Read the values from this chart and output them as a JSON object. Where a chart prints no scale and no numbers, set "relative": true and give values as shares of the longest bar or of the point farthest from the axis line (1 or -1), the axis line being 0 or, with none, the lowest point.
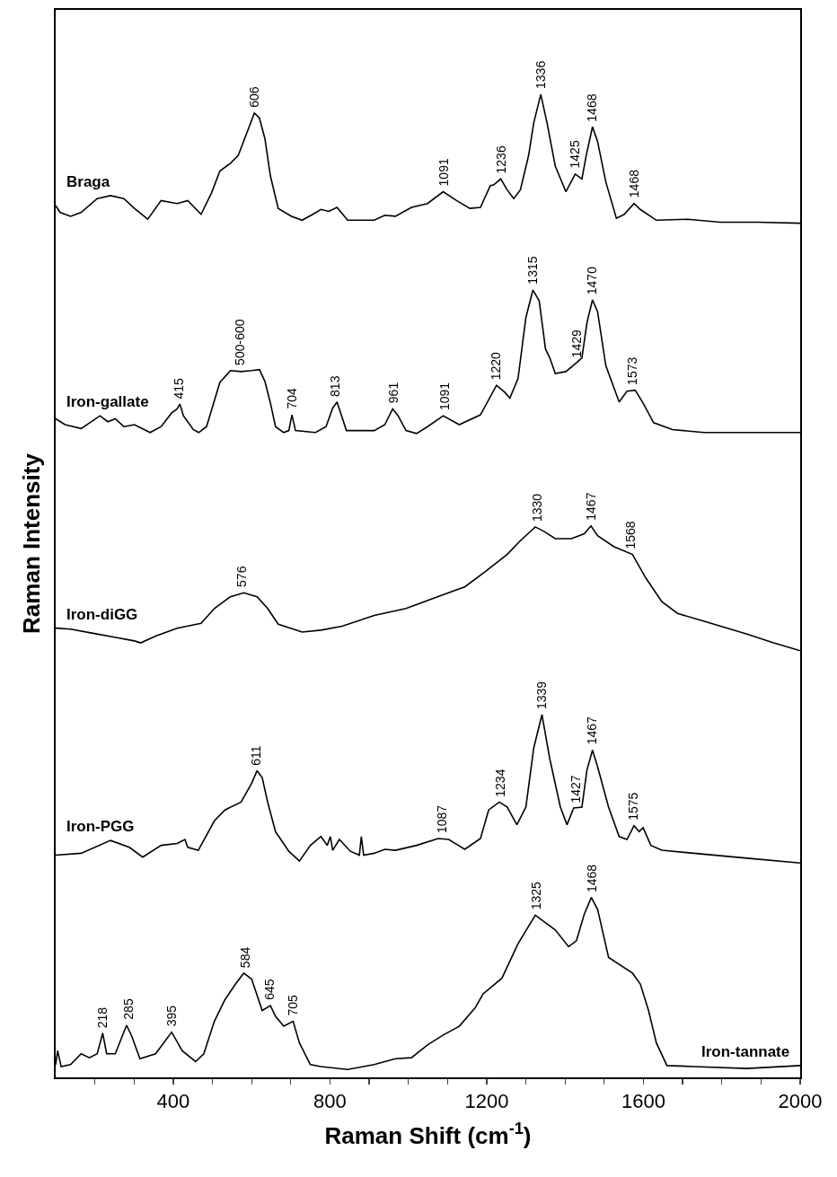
{
  "chart_data": {
    "type": "line",
    "relative": true,
    "xlabel": "Raman Shift (cm$^{-1}$)",
    "ylabel": "Raman Intensity",
    "xlim": [
      100,
      2000
    ],
    "xticks": [
      {
        "value": 200,
        "label": null
      },
      {
        "value": 300,
        "label": null
      },
      400,
      {
        "value": 500,
        "label": null
      },
      {
        "value": 600,
        "label": null
      },
      {
        "value": 700,
        "label": null
      },
      800,
      {
        "value": 900,
        "label": null
      },
      {
        "value": 1000,
        "label": null
      },
      {
        "value": 1100,
        "label": null
      },
      1200,
      {
        "value": 1300,
        "label": null
      },
      {
        "value": 1400,
        "label": null
      },
      {
        "value": 1500,
        "label": null
      },
      1600,
      {
        "value": 1700,
        "label": null
      },
      {
        "value": 1800,
        "label": null
      },
      {
        "value": 1900,
        "label": null
      },
      2000
    ],
    "series": [
      {
        "name": "Braga",
        "color": "#000000",
        "x": [
          100,
          111,
          138,
          165,
          206,
          240,
          274,
          301,
          335,
          369,
          410,
          437,
          471,
          498,
          519,
          546,
          566,
          587,
          607,
          620,
          634,
          648,
          668,
          702,
          729,
          756,
          777,
          797,
          818,
          845,
          913,
          940,
          967,
          1008,
          1049,
          1089,
          1123,
          1157,
          1184,
          1209,
          1218,
          1236,
          1252,
          1269,
          1286,
          1307,
          1320,
          1338,
          1354,
          1375,
          1402,
          1426,
          1443,
          1454,
          1470,
          1483,
          1504,
          1531,
          1551,
          1576,
          1592,
          1633,
          1714,
          1796,
          1891,
          2000
        ],
        "values": [
          0.887,
          0.88,
          0.876,
          0.88,
          0.894,
          0.897,
          0.894,
          0.884,
          0.873,
          0.892,
          0.889,
          0.892,
          0.878,
          0.9,
          0.922,
          0.93,
          0.938,
          0.96,
          0.981,
          0.976,
          0.955,
          0.917,
          0.884,
          0.876,
          0.872,
          0.878,
          0.883,
          0.881,
          0.885,
          0.872,
          0.872,
          0.877,
          0.876,
          0.885,
          0.889,
          0.901,
          0.892,
          0.884,
          0.885,
          0.907,
          0.908,
          0.914,
          0.903,
          0.894,
          0.903,
          0.938,
          0.971,
          1,
          0.971,
          0.927,
          0.901,
          0.919,
          0.914,
          0.938,
          0.967,
          0.952,
          0.911,
          0.874,
          0.878,
          0.889,
          0.883,
          0.872,
          0.873,
          0.87,
          0.87,
          0.869
        ]
      },
      {
        "name": "Iron-gallate",
        "color": "#000000",
        "x": [
          100,
          124,
          165,
          213,
          233,
          252,
          274,
          301,
          341,
          369,
          396,
          410,
          417,
          426,
          437,
          451,
          465,
          485,
          519,
          546,
          573,
          600,
          620,
          634,
          648,
          661,
          682,
          695,
          703,
          712,
          763,
          790,
          807,
          818,
          828,
          842,
          913,
          940,
          960,
          974,
          994,
          1021,
          1049,
          1089,
          1130,
          1184,
          1225,
          1246,
          1259,
          1280,
          1300,
          1318,
          1334,
          1350,
          1361,
          1375,
          1402,
          1429,
          1443,
          1456,
          1470,
          1483,
          1504,
          1538,
          1558,
          1579,
          1599,
          1626,
          1674,
          1755,
          1864,
          2000
        ],
        "values": [
          0.67,
          0.664,
          0.66,
          0.673,
          0.667,
          0.67,
          0.662,
          0.664,
          0.656,
          0.662,
          0.676,
          0.68,
          0.685,
          0.673,
          0.667,
          0.659,
          0.656,
          0.662,
          0.707,
          0.719,
          0.718,
          0.719,
          0.72,
          0.708,
          0.686,
          0.662,
          0.656,
          0.658,
          0.674,
          0.658,
          0.656,
          0.662,
          0.681,
          0.687,
          0.675,
          0.658,
          0.658,
          0.664,
          0.68,
          0.673,
          0.658,
          0.655,
          0.662,
          0.673,
          0.664,
          0.674,
          0.704,
          0.697,
          0.691,
          0.711,
          0.773,
          0.801,
          0.79,
          0.741,
          0.732,
          0.716,
          0.718,
          0.727,
          0.732,
          0.768,
          0.791,
          0.779,
          0.724,
          0.687,
          0.698,
          0.699,
          0.686,
          0.666,
          0.659,
          0.656,
          0.656,
          0.656
        ]
      },
      {
        "name": "Iron-diGG",
        "color": "#000000",
        "x": [
          100,
          138,
          192,
          247,
          301,
          317,
          355,
          410,
          471,
          505,
          546,
          580,
          614,
          641,
          668,
          729,
          777,
          831,
          913,
          994,
          1076,
          1144,
          1198,
          1252,
          1286,
          1324,
          1348,
          1375,
          1416,
          1449,
          1466,
          1483,
          1524,
          1572,
          1606,
          1647,
          1687,
          1755,
          1864,
          1932,
          2000
        ],
        "values": [
          0.457,
          0.456,
          0.452,
          0.448,
          0.444,
          0.442,
          0.449,
          0.457,
          0.462,
          0.477,
          0.489,
          0.493,
          0.489,
          0.477,
          0.461,
          0.453,
          0.455,
          0.459,
          0.47,
          0.477,
          0.489,
          0.499,
          0.515,
          0.532,
          0.546,
          0.56,
          0.555,
          0.548,
          0.548,
          0.553,
          0.561,
          0.551,
          0.54,
          0.532,
          0.508,
          0.484,
          0.472,
          0.464,
          0.451,
          0.442,
          0.434
        ]
      },
      {
        "name": "Iron-PGG",
        "color": "#000000",
        "x": [
          100,
          165,
          240,
          288,
          322,
          369,
          410,
          430,
          437,
          464,
          505,
          532,
          573,
          600,
          614,
          627,
          641,
          661,
          695,
          722,
          750,
          777,
          793,
          801,
          807,
          824,
          852,
          875,
          880,
          886,
          913,
          940,
          967,
          1021,
          1076,
          1103,
          1144,
          1184,
          1205,
          1232,
          1252,
          1277,
          1300,
          1320,
          1341,
          1361,
          1388,
          1405,
          1422,
          1443,
          1456,
          1470,
          1483,
          1511,
          1538,
          1558,
          1576,
          1589,
          1599,
          1619,
          1647,
          1728,
          1864,
          2000
        ],
        "values": [
          0.226,
          0.228,
          0.241,
          0.234,
          0.224,
          0.236,
          0.238,
          0.242,
          0.234,
          0.231,
          0.261,
          0.272,
          0.28,
          0.299,
          0.312,
          0.305,
          0.28,
          0.25,
          0.23,
          0.22,
          0.236,
          0.245,
          0.236,
          0.245,
          0.231,
          0.242,
          0.23,
          0.226,
          0.245,
          0.226,
          0.228,
          0.232,
          0.231,
          0.236,
          0.243,
          0.242,
          0.232,
          0.243,
          0.272,
          0.28,
          0.275,
          0.257,
          0.275,
          0.335,
          0.369,
          0.324,
          0.275,
          0.257,
          0.274,
          0.275,
          0.313,
          0.333,
          0.316,
          0.275,
          0.245,
          0.242,
          0.256,
          0.25,
          0.254,
          0.236,
          0.231,
          0.228,
          0.223,
          0.218
        ]
      },
      {
        "name": "Iron-tannate",
        "color": "#000000",
        "x": [
          100,
          105,
          114,
          138,
          165,
          186,
          206,
          220,
          230,
          252,
          281,
          294,
          315,
          355,
          396,
          423,
          457,
          478,
          505,
          532,
          559,
          580,
          600,
          627,
          648,
          661,
          682,
          706,
          722,
          750,
          777,
          845,
          913,
          967,
          1008,
          1049,
          1089,
          1130,
          1171,
          1191,
          1212,
          1239,
          1280,
          1324,
          1375,
          1409,
          1429,
          1449,
          1467,
          1483,
          1511,
          1572,
          1592,
          1613,
          1633,
          1660,
          1728,
          1864,
          2000
        ],
        "values": [
          0.013,
          0.027,
          0.011,
          0.013,
          0.024,
          0.02,
          0.024,
          0.045,
          0.024,
          0.024,
          0.053,
          0.042,
          0.019,
          0.024,
          0.046,
          0.027,
          0.016,
          0.024,
          0.057,
          0.079,
          0.095,
          0.106,
          0.1,
          0.068,
          0.073,
          0.062,
          0.052,
          0.057,
          0.035,
          0.013,
          0.011,
          0.008,
          0.013,
          0.019,
          0.02,
          0.033,
          0.043,
          0.052,
          0.071,
          0.085,
          0.092,
          0.101,
          0.136,
          0.165,
          0.15,
          0.133,
          0.139,
          0.166,
          0.183,
          0.171,
          0.122,
          0.106,
          0.095,
          0.068,
          0.035,
          0.012,
          0.011,
          0.009,
          0.012
        ]
      }
    ],
    "annotations": [
      {
        "text": "606",
        "x": 606,
        "y": 0.981
      },
      {
        "text": "1091",
        "x": 1091,
        "y": 0.901
      },
      {
        "text": "1236",
        "x": 1236,
        "y": 0.914
      },
      {
        "text": "1336",
        "x": 1336,
        "y": 1
      },
      {
        "text": "1425",
        "x": 1425,
        "y": 0.919
      },
      {
        "text": "1468",
        "x": 1468,
        "y": 0.967
      },
      {
        "text": "1468",
        "x": 1576,
        "y": 0.889
      },
      {
        "text": "415",
        "x": 415,
        "y": 0.685
      },
      {
        "text": "500-600",
        "x": 570,
        "y": 0.719
      },
      {
        "text": "704",
        "x": 704,
        "y": 0.674
      },
      {
        "text": "813",
        "x": 813,
        "y": 0.687
      },
      {
        "text": "961",
        "x": 961,
        "y": 0.68
      },
      {
        "text": "1091",
        "x": 1091,
        "y": 0.673
      },
      {
        "text": "1220",
        "x": 1222,
        "y": 0.704
      },
      {
        "text": "1315",
        "x": 1315,
        "y": 0.801
      },
      {
        "text": "1429",
        "x": 1429,
        "y": 0.727
      },
      {
        "text": "1470",
        "x": 1470,
        "y": 0.791
      },
      {
        "text": "1573",
        "x": 1573,
        "y": 0.699
      },
      {
        "text": "576",
        "x": 576,
        "y": 0.493
      },
      {
        "text": "1330",
        "x": 1330,
        "y": 0.56
      },
      {
        "text": "1467",
        "x": 1467,
        "y": 0.561
      },
      {
        "text": "1568",
        "x": 1568,
        "y": 0.532
      },
      {
        "text": "611",
        "x": 611,
        "y": 0.312
      },
      {
        "text": "1087",
        "x": 1087,
        "y": 0.243
      },
      {
        "text": "1234",
        "x": 1234,
        "y": 0.28
      },
      {
        "text": "1339",
        "x": 1339,
        "y": 0.369
      },
      {
        "text": "1427",
        "x": 1427,
        "y": 0.274
      },
      {
        "text": "1467",
        "x": 1467,
        "y": 0.333
      },
      {
        "text": "1575",
        "x": 1575,
        "y": 0.256
      },
      {
        "text": "218",
        "x": 218,
        "y": 0.045
      },
      {
        "text": "285",
        "x": 285,
        "y": 0.053
      },
      {
        "text": "395",
        "x": 395,
        "y": 0.046
      },
      {
        "text": "584",
        "x": 584,
        "y": 0.106
      },
      {
        "text": "645",
        "x": 645,
        "y": 0.073
      },
      {
        "text": "705",
        "x": 705,
        "y": 0.057
      },
      {
        "text": "1325",
        "x": 1325,
        "y": 0.165
      },
      {
        "text": "1468",
        "x": 1468,
        "y": 0.183
      }
    ]
  }
}
